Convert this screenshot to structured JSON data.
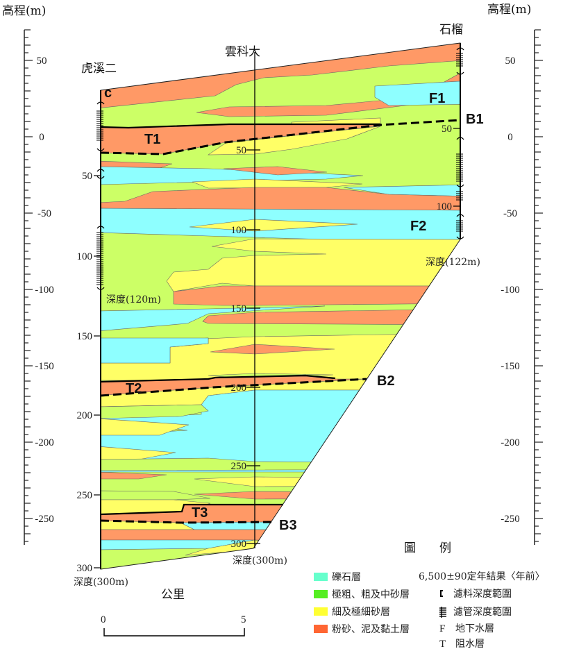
{
  "axis": {
    "title_left": "高程(m)",
    "title_right": "高程(m)",
    "ticks": [
      "50",
      "0",
      "-50",
      "-100",
      "-150",
      "-200",
      "-250"
    ]
  },
  "wells": {
    "left": {
      "name": "虎溪二",
      "depth_ticks": [
        "50",
        "100",
        "150",
        "200",
        "250",
        "300"
      ],
      "depth_label": "深度(300m)",
      "mid_label": "深度(120m)",
      "marker": "c"
    },
    "middle": {
      "name": "雲科大",
      "depth_ticks": [
        "50",
        "100",
        "150",
        "200",
        "250",
        "300"
      ],
      "depth_label": "深度(300m)"
    },
    "right": {
      "name": "石榴",
      "depth_ticks": [
        "50",
        "100"
      ],
      "depth_label": "深度(122m)"
    }
  },
  "units": {
    "F1": "F1",
    "F2": "F2",
    "T1": "T1",
    "T2": "T2",
    "T3": "T3",
    "B1": "B1",
    "B2": "B2",
    "B3": "B3"
  },
  "scale_bar": {
    "unit": "公里",
    "start": "0",
    "end": "5"
  },
  "legend": {
    "title": "圖　　例",
    "items": [
      {
        "label": "礫石層",
        "color": "#8effff",
        "swatch": "#66ffcc"
      },
      {
        "label": "極粗、粗及中砂層",
        "color": "#ccff66",
        "swatch": "#55ee22"
      },
      {
        "label": "細及極細砂層",
        "color": "#ffff66",
        "swatch": "#ffff33"
      },
      {
        "label": "粉砂、泥及黏土層",
        "color": "#ff9966",
        "swatch": "#ff6633"
      }
    ],
    "notes": [
      {
        "symbol": "",
        "label": "6,500±90定年結果〈年前〉"
      },
      {
        "symbol": "filter-bracket",
        "label": "濾料深度範圍"
      },
      {
        "symbol": "screen-hatch",
        "label": "濾管深度範圍"
      },
      {
        "symbol": "F",
        "label": "地下水層"
      },
      {
        "symbol": "T",
        "label": "阻水層"
      }
    ]
  }
}
